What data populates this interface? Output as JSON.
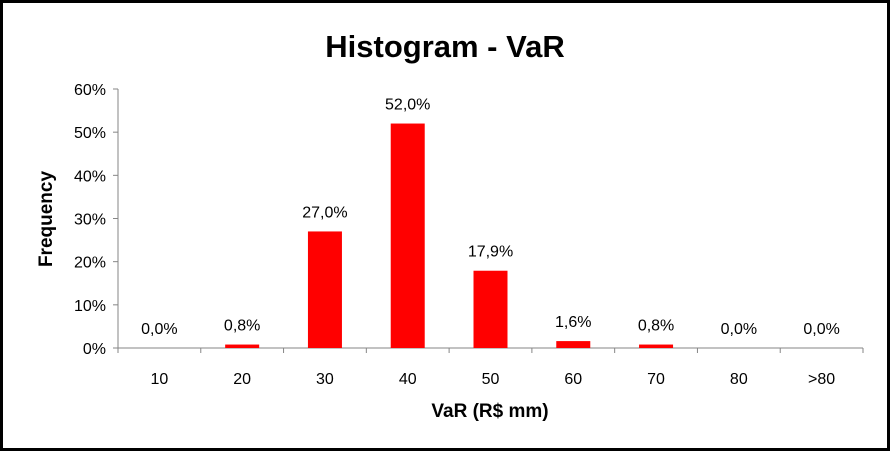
{
  "chart_data": {
    "type": "bar",
    "title": "Histogram - VaR",
    "xlabel": "VaR (R$ mm)",
    "ylabel": "Frequency",
    "categories": [
      "10",
      "20",
      "30",
      "40",
      "50",
      "60",
      "70",
      "80",
      ">80"
    ],
    "values": [
      0.0,
      0.8,
      27.0,
      52.0,
      17.9,
      1.6,
      0.8,
      0.0,
      0.0
    ],
    "data_labels": [
      "0,0%",
      "0,8%",
      "27,0%",
      "52,0%",
      "17,9%",
      "1,6%",
      "0,8%",
      "0,0%",
      "0,0%"
    ],
    "y_ticks": [
      "0%",
      "10%",
      "20%",
      "30%",
      "40%",
      "50%",
      "60%"
    ],
    "ylim": [
      0,
      60
    ],
    "grid": false,
    "legend": "none",
    "bar_color": "#FF0000"
  }
}
